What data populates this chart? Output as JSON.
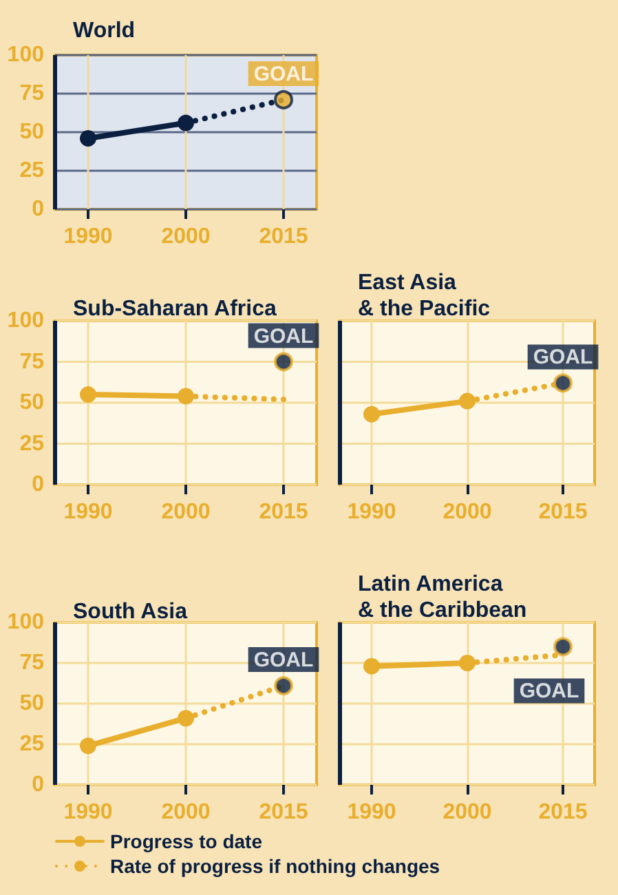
{
  "chart_data": [
    {
      "type": "line",
      "title": "World",
      "categories": [
        "1990",
        "2000",
        "2015"
      ],
      "series": [
        {
          "color": "#0b1f40",
          "values": [
            46,
            56,
            null
          ],
          "marker": "circle",
          "line_style": "solid"
        },
        {
          "color": "#0b1f40",
          "values": [
            null,
            56,
            71
          ],
          "marker": "none",
          "line_style": "dotted"
        },
        {
          "type": "scatter",
          "color": "#e8ae2e",
          "values": [
            null,
            null,
            71
          ],
          "marker": "circle"
        }
      ],
      "annotations": [
        {
          "text": "GOAL",
          "x": "2015",
          "y": 71
        }
      ],
      "ylim": [
        0,
        100
      ],
      "yticks": [
        0,
        25,
        50,
        75,
        100
      ],
      "grid": true
    },
    {
      "type": "line",
      "title": "Sub-Saharan Africa",
      "categories": [
        "1990",
        "2000",
        "2015"
      ],
      "series": [
        {
          "color": "#e8ae2e",
          "values": [
            55,
            54,
            null
          ],
          "marker": "circle",
          "line_style": "solid"
        },
        {
          "color": "#e8ae2e",
          "values": [
            null,
            54,
            52
          ],
          "marker": "none",
          "line_style": "dotted"
        },
        {
          "type": "scatter",
          "color": "#0b1f40",
          "values": [
            null,
            null,
            75
          ],
          "marker": "circle"
        }
      ],
      "annotations": [
        {
          "text": "GOAL",
          "x": "2015",
          "y": 75
        }
      ],
      "ylim": [
        0,
        100
      ],
      "yticks": [
        0,
        25,
        50,
        75,
        100
      ],
      "grid": true
    },
    {
      "type": "line",
      "title": "East Asia\n& the Pacific",
      "categories": [
        "1990",
        "2000",
        "2015"
      ],
      "series": [
        {
          "color": "#e8ae2e",
          "values": [
            43,
            51,
            null
          ],
          "marker": "circle",
          "line_style": "solid"
        },
        {
          "color": "#e8ae2e",
          "values": [
            null,
            51,
            62
          ],
          "marker": "none",
          "line_style": "dotted"
        },
        {
          "type": "scatter",
          "color": "#0b1f40",
          "values": [
            null,
            null,
            62
          ],
          "marker": "circle"
        }
      ],
      "annotations": [
        {
          "text": "GOAL",
          "x": "2015",
          "y": 62
        }
      ],
      "ylim": [
        0,
        100
      ],
      "yticks": [
        0,
        25,
        50,
        75,
        100
      ],
      "grid": true,
      "tick_labels": "x"
    },
    {
      "type": "line",
      "title": "South Asia",
      "categories": [
        "1990",
        "2000",
        "2015"
      ],
      "series": [
        {
          "color": "#e8ae2e",
          "values": [
            24,
            41,
            null
          ],
          "marker": "circle",
          "line_style": "solid"
        },
        {
          "color": "#e8ae2e",
          "values": [
            null,
            41,
            61
          ],
          "marker": "none",
          "line_style": "dotted"
        },
        {
          "type": "scatter",
          "color": "#0b1f40",
          "values": [
            null,
            null,
            61
          ],
          "marker": "circle"
        }
      ],
      "annotations": [
        {
          "text": "GOAL",
          "x": "2015",
          "y": 61
        }
      ],
      "ylim": [
        0,
        100
      ],
      "yticks": [
        0,
        25,
        50,
        75,
        100
      ],
      "grid": true
    },
    {
      "type": "line",
      "title": "Latin America\n& the Caribbean",
      "categories": [
        "1990",
        "2000",
        "2015"
      ],
      "series": [
        {
          "name": "Progress to date",
          "color": "#e8ae2e",
          "values": [
            73,
            75,
            null
          ],
          "marker": "circle",
          "line_style": "solid"
        },
        {
          "name": "Rate of progress if nothing changes",
          "color": "#e8ae2e",
          "values": [
            null,
            75,
            80
          ],
          "marker": "none",
          "line_style": "dotted"
        },
        {
          "type": "scatter",
          "color": "#0b1f40",
          "values": [
            null,
            null,
            85
          ],
          "marker": "circle"
        }
      ],
      "annotations": [
        {
          "text": "GOAL",
          "x": "2015",
          "y": 85
        }
      ],
      "ylim": [
        0,
        100
      ],
      "yticks": [
        0,
        25,
        50,
        75,
        100
      ],
      "grid": true,
      "tick_labels": "x",
      "legend": "bottom"
    }
  ]
}
